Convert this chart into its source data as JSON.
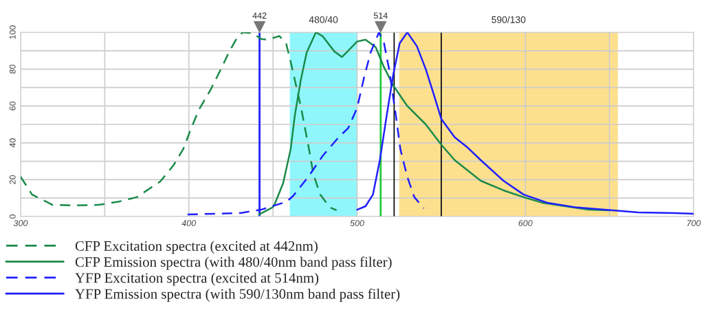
{
  "chart_data": {
    "type": "line",
    "xlim": [
      300,
      700
    ],
    "ylim": [
      0,
      100
    ],
    "xticks": [
      300,
      {
        "value": 350,
        "label": null
      },
      400,
      {
        "value": 450,
        "label": null
      },
      500,
      {
        "value": 550,
        "label": null
      },
      600,
      {
        "value": 650,
        "label": null
      },
      700
    ],
    "yticks": [
      0,
      {
        "value": 10,
        "label": null
      },
      20,
      {
        "value": 30,
        "label": null
      },
      40,
      {
        "value": 50,
        "label": null
      },
      60,
      {
        "value": 70,
        "label": null
      },
      80,
      {
        "value": 90,
        "label": null
      },
      100
    ],
    "grid": true,
    "legend": "bottom",
    "series": [
      {
        "name": "CFP Excitation spectra (excited at 442nm)",
        "color": "#1a8a4a",
        "line_style": "dashed",
        "x": [
          300,
          306.8,
          319,
          332.7,
          346,
          358,
          369,
          383,
          391,
          396.7,
          400.8,
          406,
          413,
          419.6,
          423.7,
          428,
          432,
          437.6,
          443,
          447,
          453.8,
          457.8,
          460.5,
          463,
          466.5,
          469,
          471.4,
          474,
          478,
          483.7,
          487.8
        ],
        "values": [
          21.6,
          11.9,
          6.3,
          6,
          6.3,
          8,
          10.5,
          19,
          28,
          36.7,
          46.7,
          58,
          69,
          81,
          89,
          96,
          100,
          99.6,
          96.4,
          96,
          98,
          94,
          84,
          74,
          60,
          48,
          36.6,
          23,
          12,
          5,
          3.4
        ]
      },
      {
        "name": "CFP Emission spectra (with 480/40nm band pass filter)",
        "color": "#1a8a4a",
        "line_style": "solid",
        "x": [
          441.6,
          449.8,
          451,
          456,
          460.5,
          463,
          466.5,
          470,
          475.5,
          479.6,
          486.5,
          491,
          494.7,
          500,
          505,
          511,
          516,
          521.6,
          529.8,
          540.8,
          550,
          558,
          573.5,
          587,
          599,
          610,
          623.7,
          637.5,
          649.8
        ],
        "values": [
          1.1,
          5,
          6.7,
          18,
          36.6,
          55,
          74,
          89,
          100,
          97.8,
          89.6,
          86.6,
          90,
          95,
          96,
          92,
          81,
          71,
          60,
          50,
          39,
          30.6,
          19.4,
          14.2,
          10.5,
          7.5,
          5.6,
          3.7,
          3.4
        ]
      },
      {
        "name": "YFP Excitation spectra (excited at 514nm)",
        "color": "#1f1fff",
        "line_style": "dashed",
        "x": [
          399.2,
          430.6,
          442.9,
          458,
          462,
          471,
          479.6,
          489,
          494.7,
          500,
          504,
          508,
          513,
          516,
          519,
          523,
          525.7,
          529.8,
          534,
          539.6
        ],
        "values": [
          1.1,
          1.9,
          3.7,
          8,
          11.2,
          21.6,
          33,
          43,
          48,
          59,
          75,
          89,
          100,
          94,
          80,
          55,
          36.6,
          21.6,
          10.5,
          4.5
        ]
      },
      {
        "name": "YFP Emission spectra (with 590/130nm band pass filter)",
        "color": "#1f1fff",
        "line_style": "solid",
        "x": [
          500,
          505,
          509.4,
          513.5,
          517.6,
          521.6,
          525.3,
          529.8,
          535.5,
          540.8,
          546,
          550,
          558,
          565,
          573.5,
          587,
          599,
          613,
          630.6,
          652,
          667,
          689,
          700
        ],
        "values": [
          3.7,
          5.6,
          11.9,
          30.6,
          55,
          77.6,
          94,
          100,
          92.5,
          80,
          65,
          53,
          43,
          38,
          30.6,
          19.4,
          11.9,
          7.5,
          4.9,
          3.4,
          2.2,
          1.9,
          1.5
        ]
      }
    ],
    "bands": [
      {
        "axis": "x",
        "from": 460,
        "to": 500,
        "label": "480/40",
        "color": "#8ff7fb"
      },
      {
        "axis": "x",
        "from": 525,
        "to": 655,
        "label": "590/130",
        "color": "#fde08e"
      }
    ],
    "ref_lines": [
      {
        "axis": "x",
        "value": 442,
        "label": "442",
        "color": "#1f1fff"
      },
      {
        "axis": "x",
        "value": 514,
        "label": "514",
        "color": "#22c83c"
      },
      {
        "axis": "x",
        "value": 522,
        "color": "#000000"
      },
      {
        "axis": "x",
        "value": 550,
        "color": "#000000"
      }
    ]
  }
}
